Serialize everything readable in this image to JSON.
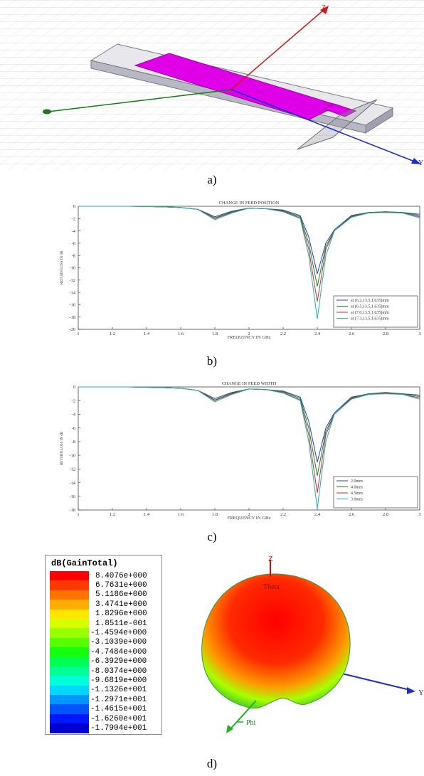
{
  "captions": {
    "a": "a)",
    "b": "b)",
    "c": "c)",
    "d": "d)"
  },
  "model3d": {
    "axis_z": "Z",
    "axis_y": "Y"
  },
  "chart_data": [
    {
      "type": "line",
      "title": "CHANGE IN FEED POSITION",
      "xlabel": "FREQUENCY IN GHz",
      "ylabel": "RETURN LOSS IN dB",
      "xlim": [
        1,
        3
      ],
      "ylim": [
        -20,
        0
      ],
      "xticks": [
        "1",
        "1.2",
        "1.4",
        "1.6",
        "1.8",
        "2",
        "2.2",
        "2.4",
        "2.6",
        "2.8",
        "3"
      ],
      "yticks": [
        "0",
        "-2",
        "-4",
        "-6",
        "-8",
        "-10",
        "-12",
        "-14",
        "-16",
        "-18",
        "-20"
      ],
      "legend_position": "bottom-right",
      "x": [
        1.0,
        1.1,
        1.2,
        1.3,
        1.4,
        1.5,
        1.6,
        1.7,
        1.8,
        1.9,
        2.0,
        2.1,
        2.2,
        2.3,
        2.35,
        2.4,
        2.45,
        2.5,
        2.6,
        2.7,
        2.8,
        2.9,
        3.0
      ],
      "series": [
        {
          "name": "at (6.2,13.5,1.635)mm",
          "color": "#2040c0",
          "values": [
            0,
            0,
            0,
            0,
            -0.05,
            -0.1,
            -0.2,
            -0.5,
            -1.7,
            -0.8,
            -0.3,
            -0.4,
            -0.6,
            -1.5,
            -5,
            -11,
            -6,
            -3.8,
            -1.5,
            -1.0,
            -0.9,
            -1.0,
            -1.3
          ]
        },
        {
          "name": "at (6.5,13.5,1.635)mm",
          "color": "#208020",
          "values": [
            0,
            0,
            0,
            0,
            -0.05,
            -0.1,
            -0.2,
            -0.5,
            -1.9,
            -0.9,
            -0.3,
            -0.4,
            -0.7,
            -1.7,
            -6,
            -13,
            -6.5,
            -4.0,
            -1.6,
            -1.0,
            -0.9,
            -1.0,
            -1.5
          ]
        },
        {
          "name": "at (7.0,13.5,1.635)mm",
          "color": "#c03030",
          "values": [
            0,
            0,
            0,
            0,
            -0.05,
            -0.1,
            -0.2,
            -0.5,
            -2.0,
            -1.0,
            -0.3,
            -0.4,
            -0.8,
            -1.9,
            -7,
            -15.5,
            -7,
            -4.0,
            -1.7,
            -1.1,
            -0.9,
            -1.1,
            -1.7
          ]
        },
        {
          "name": "at (7.3,13.5,1.635)mm",
          "color": "#20b0b0",
          "values": [
            0,
            0,
            0,
            0,
            -0.05,
            -0.1,
            -0.2,
            -0.5,
            -2.2,
            -1.1,
            -0.3,
            -0.4,
            -0.9,
            -2.0,
            -8,
            -18.3,
            -8,
            -4.0,
            -1.8,
            -1.1,
            -1.0,
            -1.1,
            -1.9
          ]
        }
      ]
    },
    {
      "type": "line",
      "title": "CHANGE IN FEED WIDTH",
      "xlabel": "FREQUENCY IN GHz",
      "ylabel": "RETURN LOSS IN dB",
      "xlim": [
        1,
        3
      ],
      "ylim": [
        -18,
        0
      ],
      "xticks": [
        "1",
        "1.2",
        "1.4",
        "1.6",
        "1.8",
        "2",
        "2.2",
        "2.4",
        "2.6",
        "2.8",
        "3"
      ],
      "yticks": [
        "0",
        "-2",
        "-4",
        "-6",
        "-8",
        "-10",
        "-12",
        "-14",
        "-16",
        "-18"
      ],
      "legend_position": "bottom-right",
      "x": [
        1.0,
        1.1,
        1.2,
        1.3,
        1.4,
        1.5,
        1.6,
        1.7,
        1.8,
        1.9,
        2.0,
        2.1,
        2.2,
        2.3,
        2.35,
        2.4,
        2.45,
        2.5,
        2.6,
        2.7,
        2.8,
        2.9,
        3.0
      ],
      "series": [
        {
          "name": "2.0mm",
          "color": "#2040c0",
          "values": [
            0,
            0,
            0,
            0,
            -0.05,
            -0.1,
            -0.2,
            -0.5,
            -1.7,
            -0.8,
            -0.3,
            -0.4,
            -0.6,
            -1.5,
            -5,
            -11,
            -6,
            -3.8,
            -1.5,
            -1.0,
            -0.8,
            -1.0,
            -1.2
          ]
        },
        {
          "name": "4.0mm",
          "color": "#208020",
          "values": [
            0,
            0,
            0,
            0,
            -0.05,
            -0.1,
            -0.2,
            -0.5,
            -1.9,
            -0.9,
            -0.3,
            -0.4,
            -0.7,
            -1.7,
            -6,
            -13,
            -6.5,
            -4.0,
            -1.6,
            -1.0,
            -0.9,
            -1.0,
            -1.4
          ]
        },
        {
          "name": "4.5mm",
          "color": "#c03030",
          "values": [
            0,
            0,
            0,
            0,
            -0.05,
            -0.1,
            -0.2,
            -0.5,
            -2.0,
            -1.0,
            -0.3,
            -0.4,
            -0.8,
            -1.9,
            -7,
            -15.5,
            -7,
            -4.0,
            -1.7,
            -1.1,
            -0.9,
            -1.1,
            -1.6
          ]
        },
        {
          "name": "3.0mm",
          "color": "#20b0b0",
          "values": [
            0,
            0,
            0,
            0,
            -0.05,
            -0.1,
            -0.2,
            -0.5,
            -2.2,
            -1.1,
            -0.3,
            -0.4,
            -0.9,
            -2.0,
            -8,
            -17.8,
            -8,
            -4.0,
            -1.8,
            -1.1,
            -1.0,
            -1.1,
            -1.8
          ]
        }
      ]
    }
  ],
  "gain_legend": {
    "title": "dB(GainTotal)",
    "entries": [
      {
        "label": "8.4076e+000",
        "color": "#ff0000"
      },
      {
        "label": "6.7631e+000",
        "color": "#ff3a00"
      },
      {
        "label": "5.1186e+000",
        "color": "#ff7400"
      },
      {
        "label": "3.4741e+000",
        "color": "#ffae00"
      },
      {
        "label": "1.8296e+000",
        "color": "#ffe600"
      },
      {
        "label": "1.8511e-001",
        "color": "#d8ff00"
      },
      {
        "label": "-1.4594e+000",
        "color": "#98ff00"
      },
      {
        "label": "-3.1039e+000",
        "color": "#56ff00"
      },
      {
        "label": "-4.7484e+000",
        "color": "#14ff10"
      },
      {
        "label": "-6.3929e+000",
        "color": "#00ff50"
      },
      {
        "label": "-8.0374e+000",
        "color": "#00ff95"
      },
      {
        "label": "-9.6819e+000",
        "color": "#00ffd8"
      },
      {
        "label": "-1.1326e+001",
        "color": "#00d8ff"
      },
      {
        "label": "-1.2971e+001",
        "color": "#0096ff"
      },
      {
        "label": "-1.4615e+001",
        "color": "#0055ff"
      },
      {
        "label": "-1.6260e+001",
        "color": "#0018ff"
      },
      {
        "label": "-1.7904e+001",
        "color": "#0000d0"
      }
    ]
  },
  "pattern3d": {
    "axis_z": "Z",
    "axis_y": "Y",
    "theta": "Theta",
    "phi": "Phi"
  }
}
